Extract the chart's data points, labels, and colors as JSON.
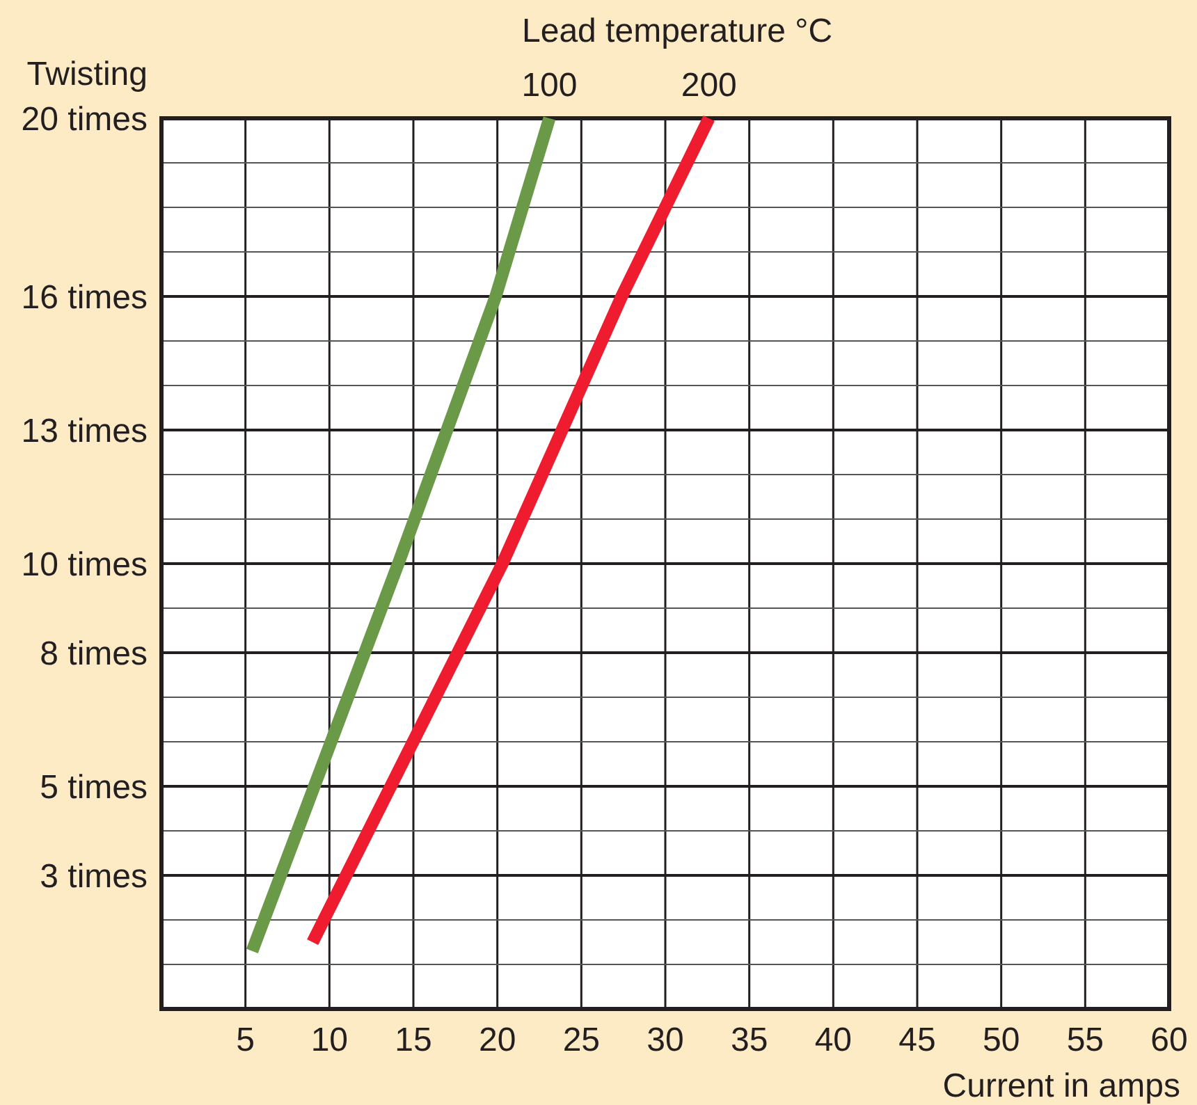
{
  "chart_data": {
    "type": "line",
    "legend_title": "Lead temperature °C",
    "ylabel": "Twisting",
    "xlabel": "Current in amps",
    "xlim": [
      0,
      60
    ],
    "xticks": [
      {
        "value": 0,
        "label": null
      },
      5,
      10,
      15,
      20,
      25,
      30,
      35,
      40,
      45,
      50,
      55,
      60
    ],
    "ylim": [
      0,
      20
    ],
    "yticks": [
      {
        "value": 0,
        "label": null
      },
      {
        "value": 1,
        "label": null
      },
      {
        "value": 2,
        "label": null
      },
      {
        "value": 3,
        "label": "3 times"
      },
      {
        "value": 4,
        "label": null
      },
      {
        "value": 5,
        "label": "5 times"
      },
      {
        "value": 6,
        "label": null
      },
      {
        "value": 7,
        "label": null
      },
      {
        "value": 8,
        "label": "8 times"
      },
      {
        "value": 9,
        "label": null
      },
      {
        "value": 10,
        "label": "10 times"
      },
      {
        "value": 11,
        "label": null
      },
      {
        "value": 12,
        "label": null
      },
      {
        "value": 13,
        "label": "13 times"
      },
      {
        "value": 14,
        "label": null
      },
      {
        "value": 15,
        "label": null
      },
      {
        "value": 16,
        "label": "16 times"
      },
      {
        "value": 17,
        "label": null
      },
      {
        "value": 18,
        "label": null
      },
      {
        "value": 19,
        "label": null
      },
      {
        "value": 20,
        "label": "20 times"
      }
    ],
    "grid": true,
    "marker": "none",
    "line_style": "solid",
    "series": [
      {
        "name": "100",
        "color": "#6a9a48",
        "x": [
          5.4,
          14.1,
          19.9,
          23.1
        ],
        "values": [
          1.3,
          10,
          16,
          20
        ]
      },
      {
        "name": "200",
        "color": "#ee1c2e",
        "x": [
          9,
          20.3,
          27.4,
          32.6
        ],
        "values": [
          1.5,
          10,
          16,
          20
        ]
      }
    ]
  }
}
